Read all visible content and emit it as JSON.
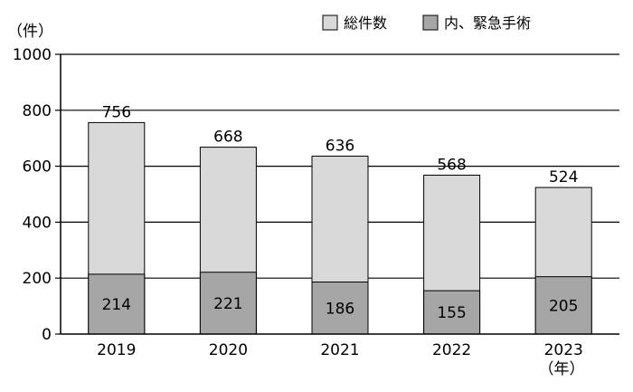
{
  "chart_data": {
    "type": "bar",
    "stacked": false,
    "overlay": true,
    "categories": [
      "2019",
      "2020",
      "2021",
      "2022",
      "2023"
    ],
    "series": [
      {
        "name": "総件数",
        "values": [
          756,
          668,
          636,
          568,
          524
        ],
        "color": "#d9d9d9"
      },
      {
        "name": "内、緊急手術",
        "values": [
          214,
          221,
          186,
          155,
          205
        ],
        "color": "#a6a6a6"
      }
    ],
    "ylim": [
      0,
      1000
    ],
    "yticks": [
      0,
      200,
      400,
      600,
      800,
      1000
    ],
    "yunit": "（件）",
    "xunit": "（年）",
    "grid": true,
    "legend": "top-right"
  }
}
